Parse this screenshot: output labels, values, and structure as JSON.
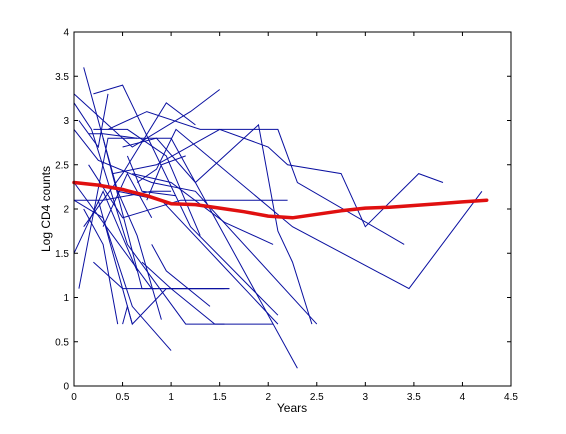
{
  "chart_data": {
    "type": "line",
    "title": "",
    "xlabel": "Years",
    "ylabel": "Log CD4 counts",
    "xlim": [
      0,
      4.5
    ],
    "ylim": [
      0,
      4
    ],
    "xticks": [
      0,
      0.5,
      1,
      1.5,
      2,
      2.5,
      3,
      3.5,
      4,
      4.5
    ],
    "yticks": [
      0,
      0.5,
      1,
      1.5,
      2,
      2.5,
      3,
      3.5,
      4
    ],
    "xtick_labels": [
      "0",
      "0.5",
      "1",
      "1.5",
      "2",
      "2.5",
      "3",
      "3.5",
      "4",
      "4.5"
    ],
    "ytick_labels": [
      "0",
      "0.5",
      "1",
      "1.5",
      "2",
      "2.5",
      "3",
      "3.5",
      "4"
    ],
    "grid": false,
    "legend": "none",
    "series": [
      {
        "x": [
          0.0,
          0.18,
          0.55,
          1.15,
          1.55
        ],
        "y": [
          3.2,
          2.9,
          1.6,
          0.7,
          0.7
        ]
      },
      {
        "x": [
          0.0,
          0.25,
          0.8,
          1.25,
          2.5
        ],
        "y": [
          2.9,
          2.55,
          2.3,
          2.2,
          0.7
        ]
      },
      {
        "x": [
          0.05,
          0.35,
          1.0,
          2.3
        ],
        "y": [
          1.1,
          2.8,
          2.8,
          0.2
        ]
      },
      {
        "x": [
          0.1,
          0.45,
          0.9,
          1.5,
          2.1
        ],
        "y": [
          3.6,
          2.2,
          2.1,
          1.4,
          0.7
        ]
      },
      {
        "x": [
          0.0,
          0.3,
          0.6,
          1.0
        ],
        "y": [
          2.1,
          1.9,
          0.9,
          0.4
        ]
      },
      {
        "x": [
          0.2,
          0.5,
          1.2,
          2.1
        ],
        "y": [
          3.3,
          3.4,
          1.8,
          0.8
        ]
      },
      {
        "x": [
          0.3,
          0.7,
          1.0,
          1.55
        ],
        "y": [
          2.8,
          1.1,
          1.1,
          1.1
        ]
      },
      {
        "x": [
          0.0,
          0.4,
          0.8,
          1.6
        ],
        "y": [
          2.3,
          1.7,
          1.1,
          1.1
        ]
      },
      {
        "x": [
          0.15,
          0.5,
          1.1,
          2.2
        ],
        "y": [
          2.5,
          1.9,
          2.1,
          2.1
        ]
      },
      {
        "x": [
          0.25,
          0.6,
          0.95,
          1.6
        ],
        "y": [
          2.1,
          0.7,
          1.1,
          1.1
        ]
      },
      {
        "x": [
          0.35,
          0.75,
          1.3,
          2.1,
          2.3,
          3.4
        ],
        "y": [
          2.9,
          3.1,
          2.9,
          2.9,
          2.3,
          1.6
        ]
      },
      {
        "x": [
          0.0,
          0.6,
          1.2,
          1.5
        ],
        "y": [
          3.3,
          2.7,
          3.1,
          3.35
        ]
      },
      {
        "x": [
          0.1,
          0.5,
          0.95,
          1.25
        ],
        "y": [
          1.8,
          2.4,
          3.2,
          2.95
        ]
      },
      {
        "x": [
          0.2,
          0.55,
          0.95,
          1.3
        ],
        "y": [
          2.9,
          2.9,
          2.6,
          1.7
        ]
      },
      {
        "x": [
          0.4,
          0.85,
          1.5,
          2.0,
          2.2,
          2.75,
          3.0,
          3.55,
          3.8
        ],
        "y": [
          2.4,
          2.5,
          2.9,
          2.7,
          2.5,
          2.4,
          1.8,
          2.4,
          2.3
        ]
      },
      {
        "x": [
          0.5,
          0.85,
          1.25,
          1.9,
          2.1,
          2.25,
          2.45
        ],
        "y": [
          2.7,
          2.8,
          2.3,
          2.95,
          1.75,
          1.4,
          0.7
        ]
      },
      {
        "x": [
          0.6,
          1.0,
          1.55,
          2.05
        ],
        "y": [
          2.4,
          2.3,
          1.85,
          1.6
        ]
      },
      {
        "x": [
          0.65,
          0.85,
          1.05,
          2.25,
          3.45,
          4.2
        ],
        "y": [
          2.3,
          2.45,
          2.9,
          1.8,
          1.1,
          2.2
        ]
      },
      {
        "x": [
          0.7,
          1.0,
          1.45,
          2.05
        ],
        "y": [
          1.4,
          1.1,
          0.7,
          0.7
        ]
      },
      {
        "x": [
          0.05,
          0.25,
          0.35
        ],
        "y": [
          3.0,
          2.7,
          3.3
        ]
      },
      {
        "x": [
          0.1,
          0.3,
          0.45
        ],
        "y": [
          2.0,
          1.6,
          0.7
        ]
      },
      {
        "x": [
          0.2,
          0.5,
          0.85
        ],
        "y": [
          1.4,
          1.1,
          1.1
        ]
      },
      {
        "x": [
          0.3,
          0.55,
          0.8
        ],
        "y": [
          1.8,
          2.4,
          1.9
        ]
      },
      {
        "x": [
          0.45,
          0.65,
          0.9
        ],
        "y": [
          2.2,
          1.7,
          0.75
        ]
      },
      {
        "x": [
          0.55,
          0.7,
          1.05
        ],
        "y": [
          2.6,
          2.2,
          2.15
        ]
      },
      {
        "x": [
          0.75,
          0.9,
          1.15
        ],
        "y": [
          2.1,
          2.5,
          2.6
        ]
      },
      {
        "x": [
          0.8,
          0.95,
          1.4
        ],
        "y": [
          1.6,
          1.3,
          0.9
        ]
      },
      {
        "x": [
          0.0,
          0.3,
          0.65
        ],
        "y": [
          1.5,
          2.2,
          1.3
        ]
      },
      {
        "x": [
          0.0,
          0.3,
          0.8,
          1.0
        ],
        "y": [
          2.1,
          2.1,
          2.2,
          2.2
        ]
      },
      {
        "x": [
          0.15,
          0.3,
          0.65
        ],
        "y": [
          2.85,
          2.85,
          2.8
        ]
      },
      {
        "x": [
          0.5,
          0.55,
          0.6
        ],
        "y": [
          0.7,
          0.9,
          0.7
        ]
      }
    ],
    "smooth_series": {
      "x": [
        0.0,
        0.25,
        0.5,
        0.75,
        1.0,
        1.25,
        1.5,
        1.75,
        2.0,
        2.25,
        2.5,
        2.75,
        3.0,
        3.25,
        3.5,
        3.75,
        4.0,
        4.25
      ],
      "y": [
        2.3,
        2.27,
        2.22,
        2.15,
        2.06,
        2.05,
        2.01,
        1.97,
        1.92,
        1.9,
        1.94,
        1.98,
        2.01,
        2.02,
        2.04,
        2.06,
        2.08,
        2.1
      ]
    }
  },
  "colors": {
    "subjects": "#0a10a0",
    "smooth": "#e01010",
    "axes": "#000000",
    "background": "#ffffff"
  }
}
